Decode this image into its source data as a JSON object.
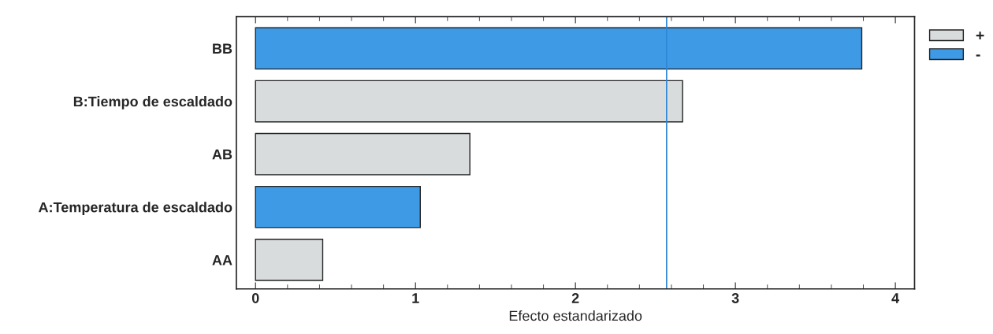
{
  "chart_data": {
    "type": "bar",
    "orientation": "horizontal",
    "xlabel": "Efecto estandarizado",
    "categories": [
      "BB",
      "B:Tiempo de escaldado",
      "AB",
      "A:Temperatura de escaldado",
      "AA"
    ],
    "series": [
      {
        "name": "+",
        "color": "#d9dcdc",
        "values": [
          null,
          2.67,
          1.34,
          null,
          0.42
        ]
      },
      {
        "name": "-",
        "color": "#3f9ae6",
        "values": [
          3.79,
          null,
          null,
          1.03,
          null
        ]
      }
    ],
    "xlim": [
      -0.12,
      4.12
    ],
    "xticks": [
      0,
      1,
      2,
      3,
      4
    ],
    "ref_lines": [
      {
        "axis": "x",
        "value": 2.57,
        "color": "#2f86d6"
      }
    ],
    "legend": "top right",
    "grid": false
  }
}
